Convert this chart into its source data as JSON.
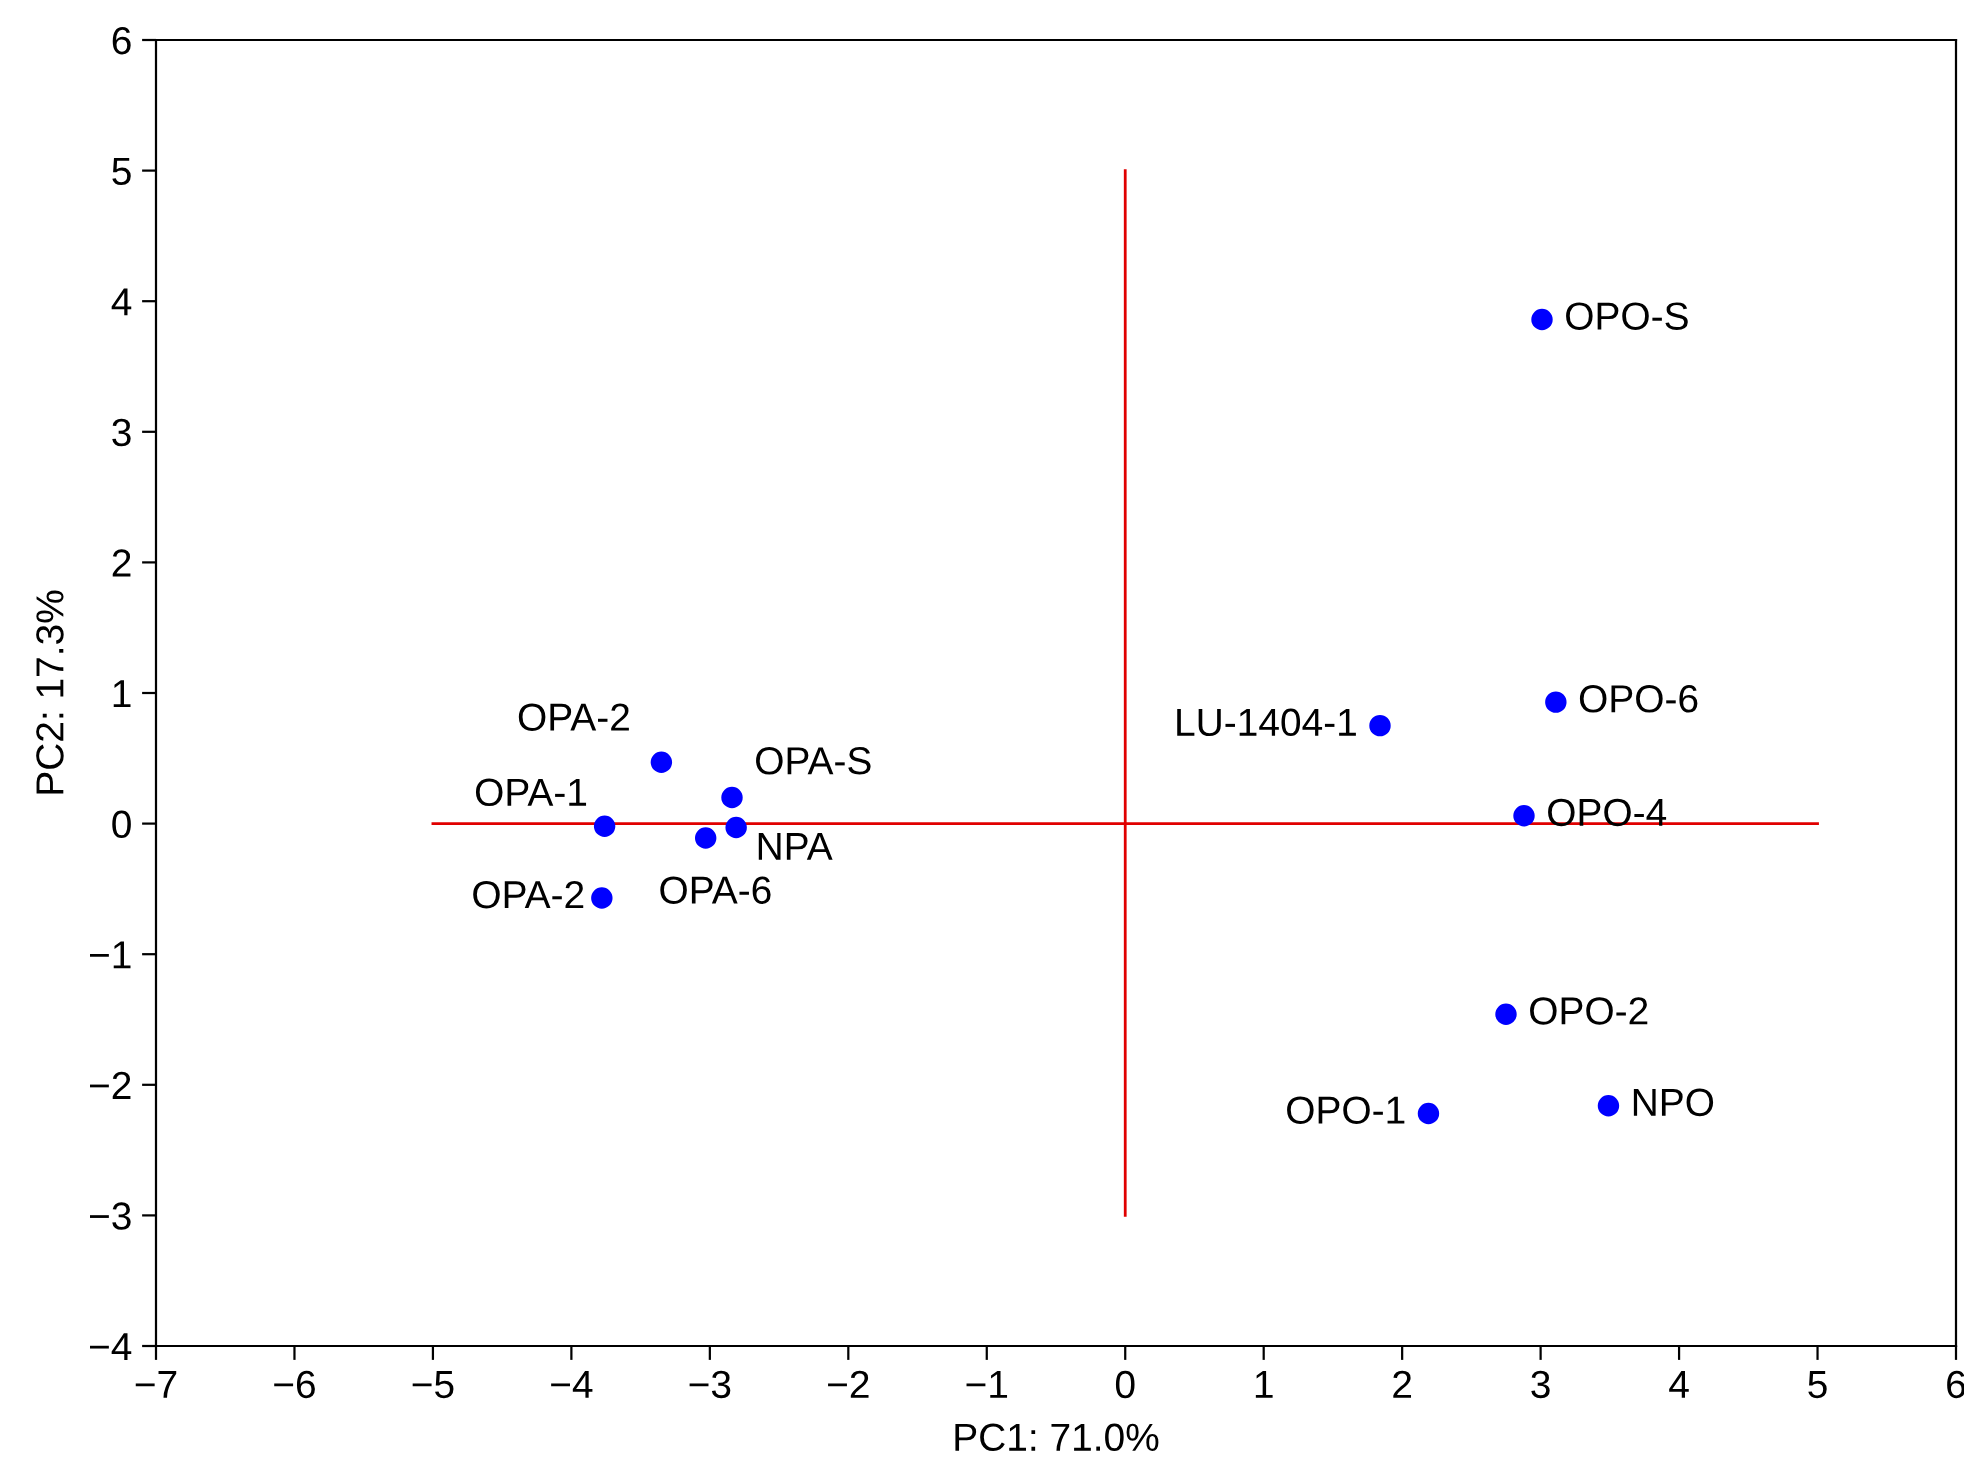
{
  "chart_data": {
    "type": "scatter",
    "xlabel": "PC1: 71.0%",
    "ylabel": "PC2: 17.3%",
    "xlim": [
      -7,
      6
    ],
    "ylim": [
      -4,
      6
    ],
    "xticks": [
      {
        "value": -7,
        "label": "−7"
      },
      {
        "value": -6,
        "label": "−6"
      },
      {
        "value": -5,
        "label": "−5"
      },
      {
        "value": -4,
        "label": "−4"
      },
      {
        "value": -3,
        "label": "−3"
      },
      {
        "value": -2,
        "label": "−2"
      },
      {
        "value": -1,
        "label": "−1"
      },
      0,
      1,
      2,
      3,
      4,
      5,
      6
    ],
    "yticks": [
      {
        "value": -4,
        "label": "−4"
      },
      {
        "value": -3,
        "label": "−3"
      },
      {
        "value": -2,
        "label": "−2"
      },
      {
        "value": -1,
        "label": "−1"
      },
      0,
      1,
      2,
      3,
      4,
      5,
      6
    ],
    "grid": false,
    "series": [
      {
        "marker": "circle",
        "color": "#0000ff",
        "x": [
          3.01,
          3.11,
          1.84,
          2.88,
          2.75,
          2.19,
          3.49,
          -3.35,
          -2.84,
          -3.76,
          -2.81,
          -3.03,
          -3.78
        ],
        "values": [
          3.86,
          0.93,
          0.75,
          0.06,
          -1.46,
          -2.22,
          -2.16,
          0.47,
          0.2,
          -0.02,
          -0.03,
          -0.11,
          -0.57
        ]
      },
      {
        "type": "line",
        "color": "#e00000",
        "x": [
          -5,
          5
        ],
        "values": [
          0,
          0
        ]
      },
      {
        "type": "line",
        "color": "#e00000",
        "x": [
          0,
          0
        ],
        "values": [
          -3,
          5
        ]
      }
    ],
    "annotations": [
      {
        "text": "OPO-S",
        "x": 3.01,
        "y": 3.86
      },
      {
        "text": "OPO-6",
        "x": 3.11,
        "y": 0.93
      },
      {
        "text": "LU-1404-1",
        "x": 1.84,
        "y": 0.75
      },
      {
        "text": "OPO-4",
        "x": 2.88,
        "y": 0.06
      },
      {
        "text": "OPO-2",
        "x": 2.75,
        "y": -1.46
      },
      {
        "text": "OPO-1",
        "x": 2.19,
        "y": -2.22
      },
      {
        "text": "NPO",
        "x": 3.49,
        "y": -2.16
      },
      {
        "text": "OPA-2",
        "x": -3.35,
        "y": 0.47
      },
      {
        "text": "OPA-S",
        "x": -2.84,
        "y": 0.2
      },
      {
        "text": "OPA-1",
        "x": -3.76,
        "y": -0.02
      },
      {
        "text": "NPA",
        "x": -2.81,
        "y": -0.03
      },
      {
        "text": "OPA-6",
        "x": -3.03,
        "y": -0.11
      },
      {
        "text": "OPA-2",
        "x": -3.78,
        "y": -0.57
      }
    ]
  }
}
